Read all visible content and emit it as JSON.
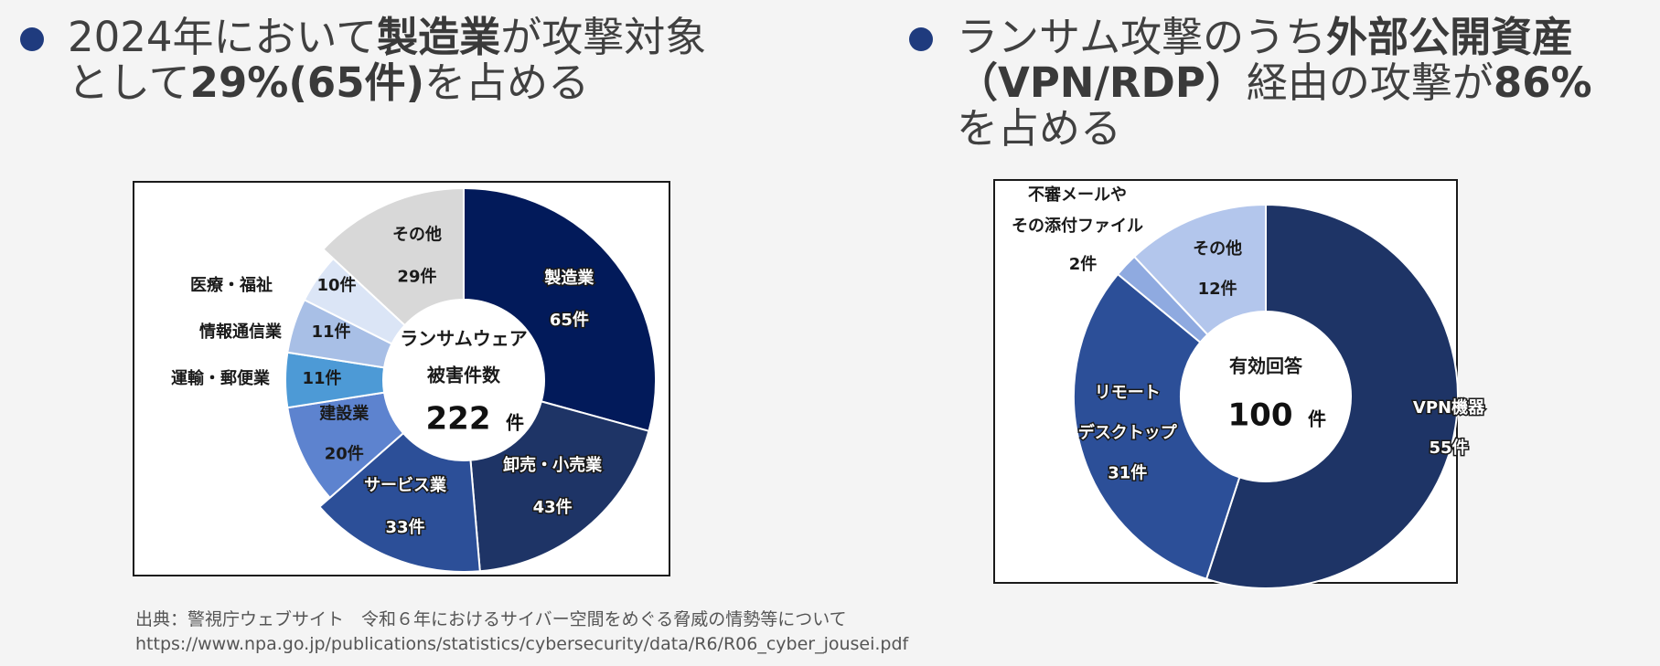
{
  "colors": {
    "bullet": "#1f3b7e",
    "dark_navy": "#021a5a",
    "navy": "#1e3466"
  },
  "headline_left": {
    "parts": [
      "2024年において",
      "製造業",
      "が攻撃対象",
      "として",
      "29%(65件)",
      "を占める"
    ]
  },
  "headline_right": {
    "parts": [
      "ランサム攻撃のうち",
      "外部公開資産",
      "（VPN/RDP）",
      "経由の攻撃が",
      "86%",
      "を占める"
    ]
  },
  "chart_data": [
    {
      "type": "pie",
      "center_label": {
        "line1": "ランサムウェア",
        "line2": "被害件数",
        "total": "222",
        "unit": "件"
      },
      "unit": "件",
      "slices": [
        {
          "label": "製造業",
          "value": 65,
          "value_text": "65件",
          "color": "#021a5a"
        },
        {
          "label": "卸売・小売業",
          "value": 43,
          "value_text": "43件",
          "color": "#1e3466"
        },
        {
          "label": "サービス業",
          "value": 33,
          "value_text": "33件",
          "color": "#2c4f98"
        },
        {
          "label": "建設業",
          "value": 20,
          "value_text": "20件",
          "color": "#5d83cf"
        },
        {
          "label": "運輸・郵便業",
          "value": 11,
          "value_text": "11件",
          "color": "#4d9ad6"
        },
        {
          "label": "情報通信業",
          "value": 11,
          "value_text": "11件",
          "color": "#a8bfe6"
        },
        {
          "label": "医療・福祉",
          "value": 10,
          "value_text": "10件",
          "color": "#dbe5f6"
        },
        {
          "label": "その他",
          "value": 29,
          "value_text": "29件",
          "color": "#d8d8d8"
        }
      ]
    },
    {
      "type": "pie",
      "center_label": {
        "line1": "有効回答",
        "total": "100",
        "unit": "件"
      },
      "unit": "件",
      "slices": [
        {
          "label": "VPN機器",
          "value": 55,
          "value_text": "55件",
          "color": "#1e3466"
        },
        {
          "label": "リモートデスクトップ",
          "label_lines": [
            "リモート",
            "デスクトップ"
          ],
          "value": 31,
          "value_text": "31件",
          "color": "#2c4f98"
        },
        {
          "label": "不審メールやその添付ファイル",
          "label_lines": [
            "不審メールや",
            "その添付ファイル"
          ],
          "value": 2,
          "value_text": "2件",
          "color": "#8faae0"
        },
        {
          "label": "その他",
          "value": 12,
          "value_text": "12件",
          "color": "#b3c6ec"
        }
      ]
    }
  ],
  "source": {
    "line1": "出典：警視庁ウェブサイト　令和６年におけるサイバー空間をめぐる脅威の情勢等について",
    "line2": "https://www.npa.go.jp/publications/statistics/cybersecurity/data/R6/R06_cyber_jousei.pdf"
  }
}
